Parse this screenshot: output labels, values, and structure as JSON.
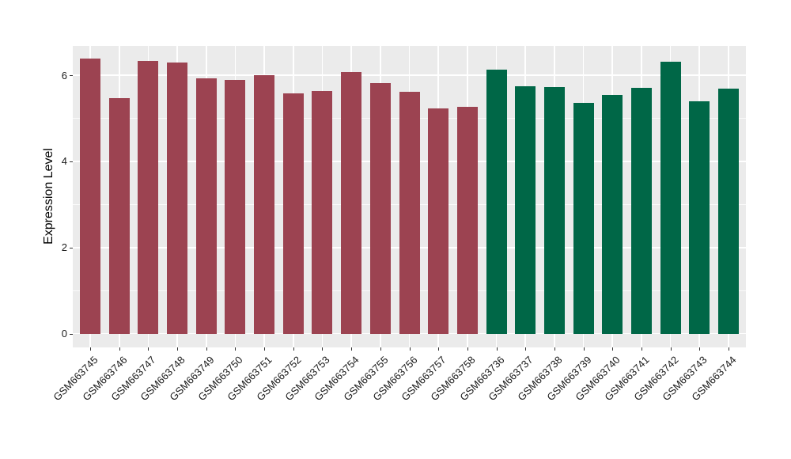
{
  "chart_data": {
    "type": "bar",
    "title": "",
    "xlabel": "",
    "ylabel": "Expression Level",
    "ylim": [
      -0.32,
      6.68
    ],
    "yticks_major": [
      0,
      2,
      4,
      6
    ],
    "yticks_minor": [
      1,
      3,
      5
    ],
    "grid": "white major and minor horizontal gridlines plus vertical major gridlines at category centers on gray panel",
    "legend_position": "none",
    "categories": [
      "GSM663745",
      "GSM663746",
      "GSM663747",
      "GSM663748",
      "GSM663749",
      "GSM663750",
      "GSM663751",
      "GSM663752",
      "GSM663753",
      "GSM663754",
      "GSM663755",
      "GSM663756",
      "GSM663757",
      "GSM663758",
      "GSM663736",
      "GSM663737",
      "GSM663738",
      "GSM663739",
      "GSM663740",
      "GSM663741",
      "GSM663742",
      "GSM663743",
      "GSM663744"
    ],
    "series": [
      {
        "name": "maroon-group",
        "color": "#9C4351",
        "categories": [
          "GSM663745",
          "GSM663746",
          "GSM663747",
          "GSM663748",
          "GSM663749",
          "GSM663750",
          "GSM663751",
          "GSM663752",
          "GSM663753",
          "GSM663754",
          "GSM663755",
          "GSM663756",
          "GSM663757",
          "GSM663758"
        ],
        "values": [
          6.38,
          5.47,
          6.33,
          6.29,
          5.93,
          5.89,
          6.0,
          5.58,
          5.64,
          6.07,
          5.82,
          5.61,
          5.23,
          5.26
        ]
      },
      {
        "name": "green-group",
        "color": "#006747",
        "categories": [
          "GSM663736",
          "GSM663737",
          "GSM663738",
          "GSM663739",
          "GSM663740",
          "GSM663741",
          "GSM663742",
          "GSM663743",
          "GSM663744"
        ],
        "values": [
          6.13,
          5.74,
          5.72,
          5.36,
          5.55,
          5.7,
          6.32,
          5.4,
          5.69
        ]
      }
    ]
  },
  "style": {
    "panel_background": "#EBEBEB",
    "gridline_color": "#FFFFFF",
    "tick_mark_color": "#333333",
    "axis_text_color": "#1A1A1A",
    "outer_background": "#FFFFFF"
  }
}
